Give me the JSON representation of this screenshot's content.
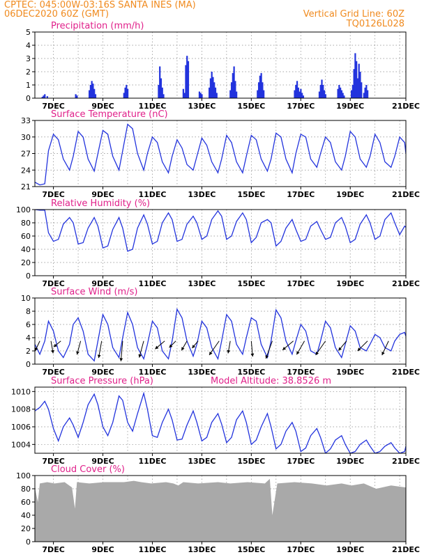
{
  "header": {
    "line1_left": "CPTEC:   045:00W-03:16S   SANTA INES (MA)",
    "line2_left": "06DEC2020 60Z (GMT)",
    "line1_right": "Vertical Grid Line: 60Z",
    "line2_right": "TQ0126L028"
  },
  "colors": {
    "header": "#f08a1e",
    "panel_title": "#e0208a",
    "series": "#2233dd",
    "cloud_fill": "#a9a9a9",
    "wind_arrow": "#000000",
    "grid": "#888888"
  },
  "x_tick_labels": [
    "7DEC",
    "9DEC",
    "11DEC",
    "13DEC",
    "15DEC",
    "17DEC",
    "19DEC",
    "21DEC"
  ],
  "chart_data": [
    {
      "type": "bar",
      "title": "Precipitation (mm/h)",
      "ylim": [
        0,
        5
      ],
      "yticks": [
        0,
        1,
        2,
        3,
        4,
        5
      ],
      "grid": true,
      "x": [
        0.3,
        0.35,
        0.4,
        0.5,
        1.65,
        1.7,
        2.2,
        2.25,
        2.3,
        2.35,
        2.4,
        2.45,
        3.6,
        3.65,
        3.7,
        3.75,
        5.0,
        5.05,
        5.1,
        5.15,
        5.2,
        6.0,
        6.05,
        6.1,
        6.15,
        6.2,
        6.65,
        6.7,
        6.75,
        7.05,
        7.1,
        7.15,
        7.2,
        7.25,
        7.3,
        7.35,
        7.9,
        7.95,
        8.0,
        8.05,
        8.1,
        8.15,
        9.0,
        9.05,
        9.1,
        9.15,
        9.2,
        9.25,
        10.5,
        10.55,
        10.6,
        10.65,
        10.7,
        10.75,
        10.8,
        10.85,
        11.5,
        11.55,
        11.6,
        11.65,
        11.7,
        11.75,
        12.25,
        12.3,
        12.35,
        12.4,
        12.45,
        12.5,
        12.8,
        12.85,
        12.9,
        12.95,
        13.0,
        13.05,
        13.1,
        13.15,
        13.2,
        13.3,
        13.35,
        13.4,
        13.45
      ],
      "values": [
        0.1,
        0.2,
        0.3,
        0.15,
        0.3,
        0.2,
        0.6,
        1.0,
        1.3,
        1.1,
        0.7,
        0.3,
        0.4,
        0.8,
        1.0,
        0.7,
        1.0,
        2.4,
        1.5,
        0.8,
        0.3,
        0.7,
        0.4,
        2.5,
        3.2,
        2.8,
        0.5,
        0.4,
        0.3,
        0.8,
        1.5,
        2.0,
        1.6,
        1.2,
        0.8,
        0.4,
        0.6,
        1.2,
        1.9,
        2.4,
        1.3,
        0.5,
        0.6,
        1.2,
        1.7,
        1.9,
        1.2,
        0.6,
        0.6,
        1.0,
        1.3,
        0.8,
        0.5,
        0.7,
        0.4,
        0.2,
        0.5,
        1.0,
        1.4,
        1.0,
        0.6,
        0.3,
        0.7,
        1.0,
        0.8,
        0.6,
        0.4,
        0.2,
        0.6,
        1.0,
        2.2,
        3.4,
        2.8,
        1.5,
        2.6,
        2.0,
        1.2,
        0.4,
        0.8,
        1.0,
        0.6
      ]
    },
    {
      "type": "line",
      "title": "Surface Temperature (nC)",
      "ylim": [
        21,
        33
      ],
      "yticks": [
        21,
        24,
        27,
        30,
        33
      ],
      "grid": true,
      "x": [
        0.0,
        0.2,
        0.4,
        0.55,
        0.75,
        0.95,
        1.15,
        1.4,
        1.55,
        1.75,
        1.95,
        2.15,
        2.4,
        2.55,
        2.75,
        2.95,
        3.15,
        3.4,
        3.55,
        3.75,
        3.95,
        4.15,
        4.4,
        4.55,
        4.75,
        4.95,
        5.15,
        5.4,
        5.55,
        5.75,
        5.95,
        6.15,
        6.4,
        6.55,
        6.75,
        6.95,
        7.15,
        7.4,
        7.55,
        7.75,
        7.95,
        8.15,
        8.4,
        8.55,
        8.75,
        8.95,
        9.15,
        9.4,
        9.55,
        9.75,
        9.95,
        10.15,
        10.4,
        10.55,
        10.75,
        10.95,
        11.15,
        11.4,
        11.55,
        11.75,
        11.95,
        12.15,
        12.4,
        12.55,
        12.75,
        12.95,
        13.15,
        13.4,
        13.55,
        13.75,
        13.95,
        14.15,
        14.4,
        14.55,
        14.75,
        14.95,
        15.0
      ],
      "values": [
        21.8,
        21.3,
        21.5,
        27.5,
        30.5,
        29.5,
        26.0,
        24.0,
        26.5,
        31.0,
        30.0,
        26.0,
        23.8,
        27.0,
        31.2,
        30.5,
        26.5,
        24.0,
        27.5,
        32.3,
        31.5,
        27.0,
        24.0,
        27.0,
        30.0,
        29.0,
        25.5,
        23.5,
        26.5,
        29.5,
        28.0,
        25.0,
        24.0,
        26.5,
        29.8,
        28.5,
        25.5,
        23.5,
        26.0,
        30.3,
        29.0,
        25.5,
        23.5,
        26.5,
        30.3,
        29.5,
        26.0,
        23.8,
        26.0,
        30.7,
        30.0,
        26.0,
        23.5,
        27.0,
        30.5,
        30.0,
        26.0,
        24.5,
        27.0,
        30.0,
        29.0,
        25.5,
        24.0,
        26.5,
        31.0,
        30.0,
        26.0,
        24.5,
        26.5,
        30.5,
        29.0,
        25.5,
        24.5,
        26.5,
        30.0,
        29.0,
        27.0
      ]
    },
    {
      "type": "line",
      "title": "Relative Humidity (%)",
      "ylim": [
        0,
        100
      ],
      "yticks": [
        0,
        20,
        40,
        60,
        80,
        100
      ],
      "grid": true,
      "x": [
        0.0,
        0.2,
        0.4,
        0.55,
        0.75,
        0.95,
        1.15,
        1.4,
        1.55,
        1.75,
        1.95,
        2.15,
        2.4,
        2.55,
        2.75,
        2.95,
        3.15,
        3.4,
        3.55,
        3.75,
        3.95,
        4.15,
        4.4,
        4.55,
        4.75,
        4.95,
        5.15,
        5.4,
        5.55,
        5.75,
        5.95,
        6.15,
        6.4,
        6.55,
        6.75,
        6.95,
        7.15,
        7.4,
        7.55,
        7.75,
        7.95,
        8.15,
        8.4,
        8.55,
        8.75,
        8.95,
        9.15,
        9.4,
        9.55,
        9.75,
        9.95,
        10.15,
        10.4,
        10.55,
        10.75,
        10.95,
        11.15,
        11.4,
        11.55,
        11.75,
        11.95,
        12.15,
        12.4,
        12.55,
        12.75,
        12.95,
        13.15,
        13.4,
        13.55,
        13.75,
        13.95,
        14.15,
        14.4,
        14.55,
        14.75,
        14.95,
        15.0
      ],
      "values": [
        100,
        99,
        99,
        65,
        52,
        55,
        78,
        88,
        80,
        48,
        50,
        72,
        88,
        75,
        42,
        45,
        70,
        88,
        72,
        37,
        40,
        72,
        92,
        78,
        48,
        52,
        80,
        95,
        85,
        52,
        55,
        78,
        90,
        80,
        55,
        60,
        85,
        98,
        90,
        55,
        60,
        82,
        95,
        85,
        50,
        58,
        80,
        85,
        80,
        45,
        52,
        72,
        85,
        70,
        52,
        55,
        75,
        82,
        70,
        55,
        58,
        80,
        88,
        75,
        50,
        55,
        78,
        92,
        80,
        55,
        60,
        85,
        95,
        80,
        62,
        75,
        73
      ]
    },
    {
      "type": "line",
      "title": "Surface Wind (m/s)",
      "ylim": [
        0,
        10
      ],
      "yticks": [
        0,
        2,
        4,
        6,
        8,
        10
      ],
      "grid": true,
      "x": [
        0.0,
        0.2,
        0.4,
        0.55,
        0.75,
        0.95,
        1.15,
        1.4,
        1.55,
        1.75,
        1.95,
        2.15,
        2.4,
        2.55,
        2.75,
        2.95,
        3.15,
        3.4,
        3.55,
        3.75,
        3.95,
        4.15,
        4.4,
        4.55,
        4.75,
        4.95,
        5.15,
        5.4,
        5.55,
        5.75,
        5.95,
        6.15,
        6.4,
        6.55,
        6.75,
        6.95,
        7.15,
        7.4,
        7.55,
        7.75,
        7.95,
        8.15,
        8.4,
        8.55,
        8.75,
        8.95,
        9.15,
        9.4,
        9.55,
        9.75,
        9.95,
        10.15,
        10.4,
        10.55,
        10.75,
        10.95,
        11.15,
        11.4,
        11.55,
        11.75,
        11.95,
        12.15,
        12.4,
        12.55,
        12.75,
        12.95,
        13.15,
        13.4,
        13.55,
        13.75,
        13.95,
        14.15,
        14.4,
        14.55,
        14.75,
        14.95,
        15.0
      ],
      "values": [
        3.0,
        1.5,
        3.5,
        6.5,
        5.0,
        2.0,
        1.0,
        3.0,
        6.0,
        7.0,
        5.0,
        1.5,
        0.5,
        3.5,
        7.5,
        6.0,
        2.5,
        1.0,
        4.0,
        7.8,
        6.0,
        2.5,
        0.8,
        3.0,
        6.5,
        5.5,
        2.0,
        0.8,
        3.5,
        8.3,
        7.0,
        3.5,
        1.2,
        3.0,
        6.5,
        5.5,
        2.5,
        0.8,
        3.5,
        7.5,
        6.5,
        3.0,
        1.5,
        4.0,
        7.0,
        6.5,
        3.0,
        1.0,
        3.5,
        8.2,
        7.0,
        3.5,
        1.5,
        3.5,
        6.0,
        5.0,
        2.0,
        1.5,
        3.5,
        6.5,
        5.5,
        2.5,
        1.0,
        3.0,
        5.8,
        5.0,
        2.5,
        2.0,
        3.0,
        4.5,
        4.0,
        2.5,
        2.0,
        3.5,
        4.5,
        4.8,
        4.2
      ],
      "wind_arrows": {
        "x": [
          0.2,
          0.65,
          1.05,
          1.85,
          2.7,
          3.55,
          4.4,
          5.25,
          5.7,
          6.15,
          6.6,
          7.45,
          7.9,
          8.75,
          9.6,
          10.45,
          10.9,
          11.75,
          12.6,
          13.45,
          14.3
        ],
        "speed": [
          3.5,
          4.0,
          3.0,
          4.5,
          5.5,
          6.5,
          5.5,
          4.0,
          3.0,
          3.5,
          3.0,
          5.5,
          4.0,
          5.0,
          6.0,
          4.5,
          5.0,
          5.5,
          4.0,
          4.5,
          5.0
        ],
        "direction_deg": [
          65,
          100,
          40,
          75,
          80,
          85,
          75,
          40,
          45,
          60,
          50,
          55,
          80,
          95,
          70,
          40,
          60,
          55,
          50,
          45,
          65
        ]
      }
    },
    {
      "type": "line",
      "title": "Surface Pressure (hPa)",
      "annotation": "Model Altitude: 38.8526 m",
      "ylim": [
        1003,
        1010.5
      ],
      "yticks": [
        1004,
        1006,
        1008,
        1010
      ],
      "grid": true,
      "x": [
        0.0,
        0.2,
        0.4,
        0.55,
        0.75,
        0.95,
        1.15,
        1.4,
        1.55,
        1.75,
        1.95,
        2.15,
        2.4,
        2.55,
        2.75,
        2.95,
        3.15,
        3.4,
        3.55,
        3.75,
        3.95,
        4.15,
        4.4,
        4.55,
        4.75,
        4.95,
        5.15,
        5.4,
        5.55,
        5.75,
        5.95,
        6.15,
        6.4,
        6.55,
        6.75,
        6.95,
        7.15,
        7.4,
        7.55,
        7.75,
        7.95,
        8.15,
        8.4,
        8.55,
        8.75,
        8.95,
        9.15,
        9.4,
        9.55,
        9.75,
        9.95,
        10.15,
        10.4,
        10.55,
        10.75,
        10.95,
        11.15,
        11.4,
        11.55,
        11.75,
        11.95,
        12.15,
        12.4,
        12.55,
        12.75,
        12.95,
        13.15,
        13.4,
        13.55,
        13.75,
        13.95,
        14.15,
        14.4,
        14.55,
        14.75,
        14.95,
        15.0
      ],
      "values": [
        1007.8,
        1008.2,
        1008.9,
        1008.0,
        1005.8,
        1004.4,
        1006.0,
        1007.0,
        1006.2,
        1004.8,
        1006.5,
        1008.5,
        1009.7,
        1008.5,
        1006.0,
        1005.0,
        1006.5,
        1009.5,
        1009.0,
        1006.5,
        1005.5,
        1007.5,
        1009.8,
        1008.0,
        1005.0,
        1004.8,
        1006.5,
        1008.0,
        1006.8,
        1004.5,
        1004.6,
        1006.2,
        1007.8,
        1006.5,
        1004.4,
        1004.8,
        1006.5,
        1007.5,
        1006.3,
        1004.2,
        1004.8,
        1006.8,
        1007.8,
        1006.5,
        1004.0,
        1004.5,
        1006.0,
        1007.5,
        1006.0,
        1003.5,
        1004.0,
        1005.5,
        1006.5,
        1005.5,
        1003.2,
        1003.6,
        1005.0,
        1005.8,
        1004.8,
        1003.0,
        1003.5,
        1004.5,
        1005.0,
        1004.0,
        1003.0,
        1003.2,
        1004.0,
        1004.5,
        1003.8,
        1003.0,
        1003.2,
        1003.8,
        1004.2,
        1003.6,
        1003.0,
        1003.2,
        1003.8
      ]
    },
    {
      "type": "area",
      "title": "Cloud Cover (%)",
      "ylim": [
        0,
        100
      ],
      "yticks": [
        0,
        20,
        40,
        60,
        80,
        100
      ],
      "grid": true,
      "x": [
        0.0,
        0.12,
        0.2,
        0.5,
        0.8,
        1.2,
        1.5,
        1.62,
        1.7,
        2.2,
        2.8,
        3.6,
        4.0,
        4.3,
        4.7,
        5.3,
        5.6,
        5.8,
        6.0,
        6.6,
        7.4,
        7.9,
        8.6,
        9.3,
        9.5,
        9.6,
        9.8,
        10.5,
        11.2,
        11.8,
        12.4,
        12.8,
        13.3,
        13.8,
        14.4,
        15.0
      ],
      "values": [
        82,
        60,
        88,
        90,
        88,
        90,
        82,
        50,
        90,
        88,
        90,
        90,
        92,
        90,
        88,
        90,
        88,
        85,
        90,
        88,
        90,
        88,
        90,
        88,
        95,
        40,
        88,
        90,
        88,
        85,
        88,
        85,
        88,
        80,
        85,
        82
      ]
    }
  ]
}
